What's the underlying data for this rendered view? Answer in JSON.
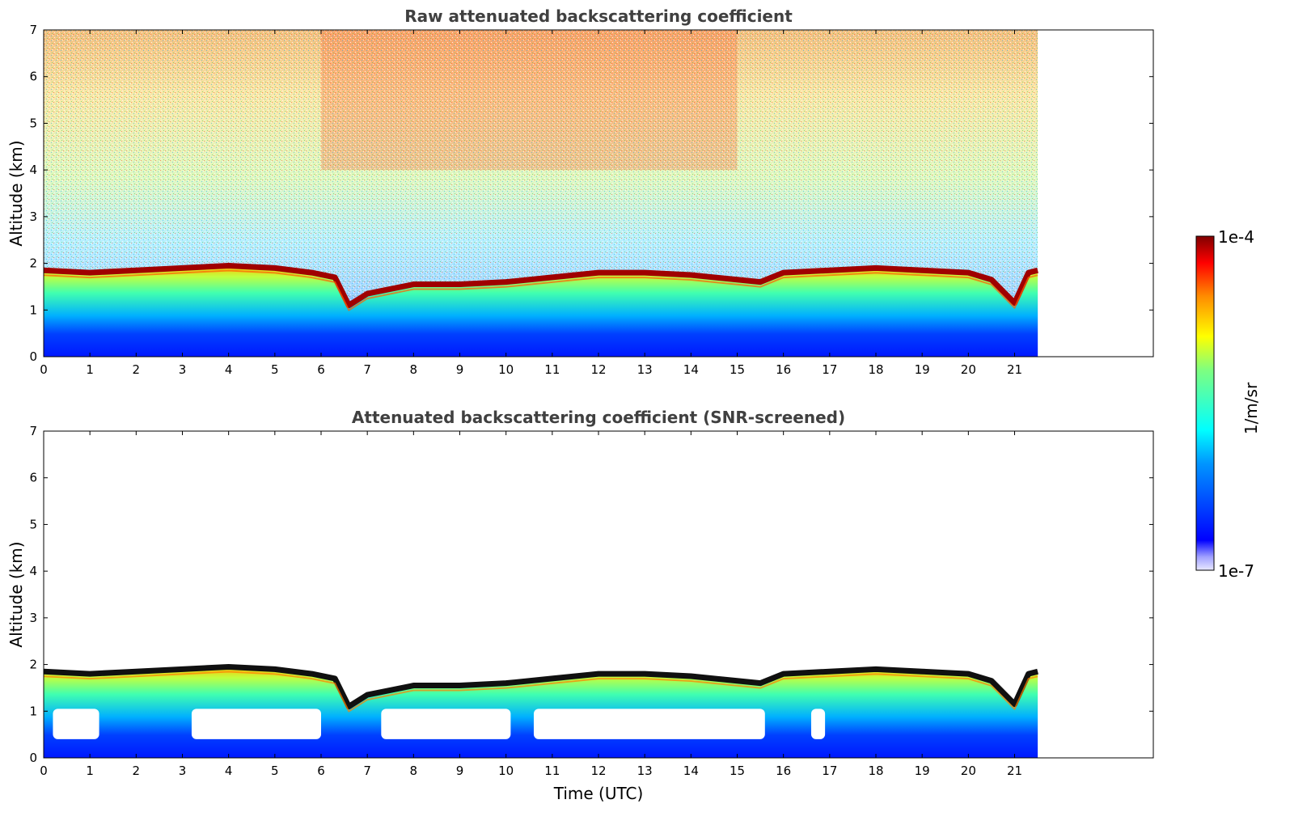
{
  "chart_data": [
    {
      "type": "heatmap",
      "title": "Raw attenuated backscattering coefficient",
      "ylabel": "Altitude (km)",
      "xlabel": "",
      "xlim": [
        0,
        24
      ],
      "ylim": [
        0,
        7
      ],
      "x_ticks": [
        "0",
        "1",
        "2",
        "3",
        "4",
        "5",
        "6",
        "7",
        "8",
        "9",
        "10",
        "11",
        "12",
        "13",
        "14",
        "15",
        "16",
        "17",
        "18",
        "19",
        "20",
        "21"
      ],
      "y_ticks": [
        "0",
        "1",
        "2",
        "3",
        "4",
        "5",
        "6",
        "7"
      ],
      "data_time_range": [
        0,
        21.5
      ],
      "cloud_layer_top_km": [
        [
          0,
          1.85
        ],
        [
          1,
          1.8
        ],
        [
          2,
          1.85
        ],
        [
          3,
          1.9
        ],
        [
          4,
          1.95
        ],
        [
          5,
          1.9
        ],
        [
          5.8,
          1.8
        ],
        [
          6.3,
          1.7
        ],
        [
          6.6,
          1.1
        ],
        [
          7,
          1.35
        ],
        [
          8,
          1.55
        ],
        [
          9,
          1.55
        ],
        [
          10,
          1.6
        ],
        [
          11,
          1.7
        ],
        [
          12,
          1.8
        ],
        [
          13,
          1.8
        ],
        [
          14,
          1.75
        ],
        [
          15,
          1.65
        ],
        [
          15.5,
          1.6
        ],
        [
          16,
          1.8
        ],
        [
          17,
          1.85
        ],
        [
          18,
          1.9
        ],
        [
          19,
          1.85
        ],
        [
          20,
          1.8
        ],
        [
          20.5,
          1.65
        ],
        [
          21,
          1.15
        ],
        [
          21.3,
          1.8
        ],
        [
          21.5,
          1.85
        ]
      ]
    },
    {
      "type": "heatmap",
      "title": "Attenuated backscattering coefficient (SNR-screened)",
      "ylabel": "Altitude (km)",
      "xlabel": "Time (UTC)",
      "xlim": [
        0,
        24
      ],
      "ylim": [
        0,
        7
      ],
      "x_ticks": [
        "0",
        "1",
        "2",
        "3",
        "4",
        "5",
        "6",
        "7",
        "8",
        "9",
        "10",
        "11",
        "12",
        "13",
        "14",
        "15",
        "16",
        "17",
        "18",
        "19",
        "20",
        "21"
      ],
      "y_ticks": [
        "0",
        "1",
        "2",
        "3",
        "4",
        "5",
        "6",
        "7"
      ],
      "data_time_range": [
        0,
        21.5
      ],
      "screened_gap_km": [
        0.4,
        1.2
      ]
    }
  ],
  "colorbar": {
    "label": "1/m/sr",
    "max_label": "1e-4",
    "min_label": "1e-7",
    "scale": "log",
    "colormap": [
      "#ffffff",
      "#c8c8ff",
      "#0000ff",
      "#0096ff",
      "#00ffff",
      "#7fff7f",
      "#ffff00",
      "#ff9600",
      "#ff0000",
      "#800000"
    ]
  }
}
